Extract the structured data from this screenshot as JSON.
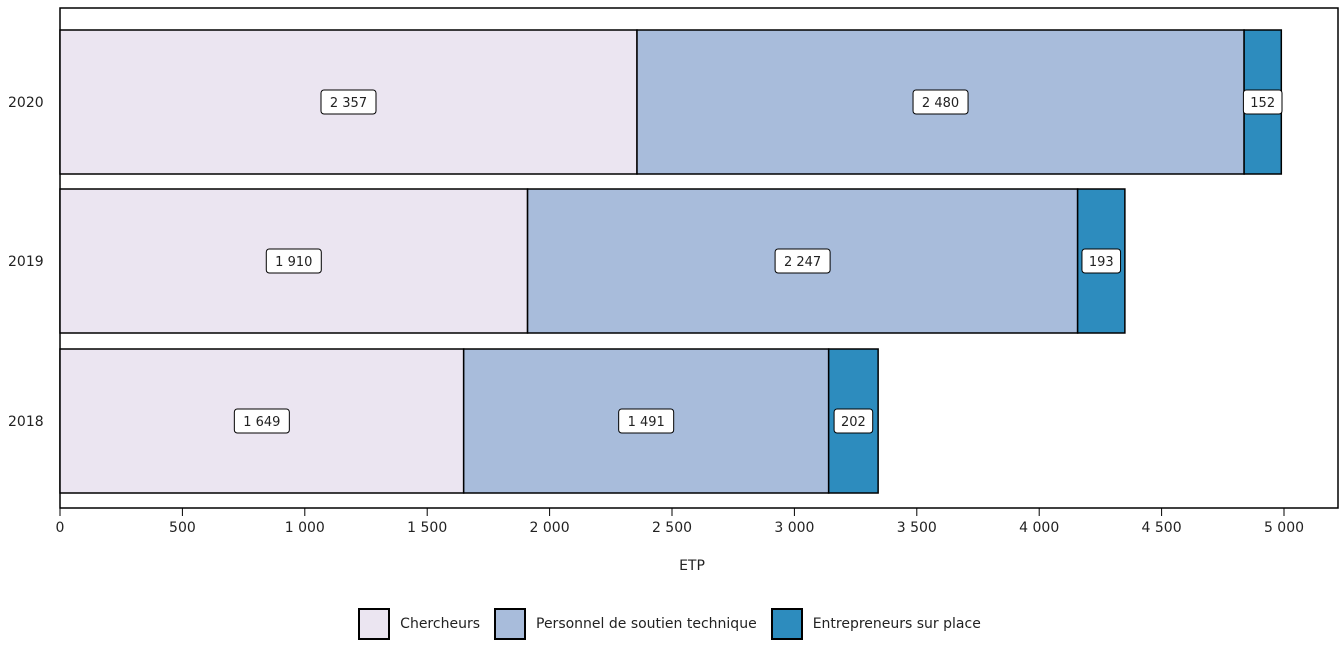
{
  "chart_data": {
    "type": "bar",
    "orientation": "horizontal",
    "stacked": true,
    "categories": [
      "2020",
      "2019",
      "2018"
    ],
    "series": [
      {
        "name": "Chercheurs",
        "color": "#ebe5f1",
        "values": [
          2357,
          1910,
          1649
        ],
        "labels": [
          "2 357",
          "1 910",
          "1 649"
        ]
      },
      {
        "name": "Personnel de soutien technique",
        "color": "#a8bcdb",
        "values": [
          2480,
          2247,
          1491
        ],
        "labels": [
          "2 480",
          "2 247",
          "1 491"
        ]
      },
      {
        "name": "Entrepreneurs sur place",
        "color": "#2d8cbe",
        "values": [
          152,
          193,
          202
        ],
        "labels": [
          "152",
          "193",
          "202"
        ]
      }
    ],
    "xlabel": "ETP",
    "xlim": [
      0,
      5000
    ],
    "xticks": [
      0,
      500,
      1000,
      1500,
      2000,
      2500,
      3000,
      3500,
      4000,
      4500,
      5000
    ],
    "xtick_labels": [
      "0",
      "500",
      "1 000",
      "1 500",
      "2 000",
      "2 500",
      "3 000",
      "3 500",
      "4 000",
      "4 500",
      "5 000"
    ],
    "legend_position": "bottom"
  }
}
